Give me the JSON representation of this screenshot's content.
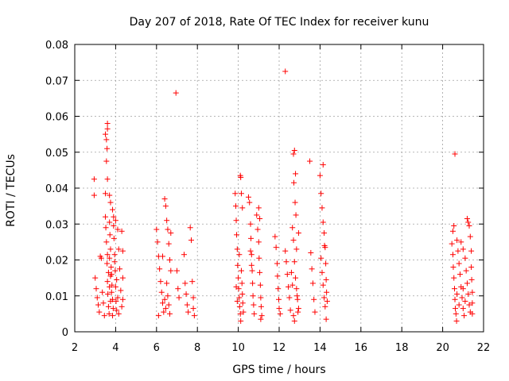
{
  "chart_data": {
    "type": "scatter",
    "title": "Day 207 of 2018, Rate Of TEC Index for receiver kunu",
    "xlabel": "GPS time / hours",
    "ylabel": "ROTI / TECUs",
    "xlim": [
      2,
      22
    ],
    "ylim": [
      0,
      0.08
    ],
    "x_ticks": [
      "2",
      "4",
      "6",
      "8",
      "10",
      "12",
      "14",
      "16",
      "18",
      "20",
      "22"
    ],
    "y_ticks": [
      "0",
      "0.01",
      "0.02",
      "0.03",
      "0.04",
      "0.05",
      "0.06",
      "0.07",
      "0.08"
    ],
    "grid": true,
    "marker": "+",
    "color": "#ff0000",
    "points": [
      [
        2.95,
        0.0425
      ],
      [
        2.95,
        0.038
      ],
      [
        3.5,
        0.055
      ],
      [
        3.55,
        0.0535
      ],
      [
        3.6,
        0.058
      ],
      [
        3.6,
        0.0565
      ],
      [
        3.58,
        0.051
      ],
      [
        3.55,
        0.0475
      ],
      [
        3.6,
        0.0425
      ],
      [
        3.5,
        0.0385
      ],
      [
        3.7,
        0.038
      ],
      [
        3.75,
        0.036
      ],
      [
        3.0,
        0.015
      ],
      [
        3.05,
        0.012
      ],
      [
        3.1,
        0.0095
      ],
      [
        3.15,
        0.0075
      ],
      [
        3.2,
        0.0055
      ],
      [
        3.25,
        0.021
      ],
      [
        3.3,
        0.0205
      ],
      [
        3.35,
        0.011
      ],
      [
        3.4,
        0.008
      ],
      [
        3.45,
        0.0045
      ],
      [
        3.5,
        0.032
      ],
      [
        3.52,
        0.029
      ],
      [
        3.55,
        0.025
      ],
      [
        3.58,
        0.019
      ],
      [
        3.6,
        0.014
      ],
      [
        3.62,
        0.0105
      ],
      [
        3.65,
        0.007
      ],
      [
        3.68,
        0.005
      ],
      [
        3.7,
        0.0305
      ],
      [
        3.72,
        0.027
      ],
      [
        3.75,
        0.023
      ],
      [
        3.78,
        0.018
      ],
      [
        3.8,
        0.016
      ],
      [
        3.82,
        0.013
      ],
      [
        3.85,
        0.009
      ],
      [
        3.88,
        0.0065
      ],
      [
        3.9,
        0.0295
      ],
      [
        3.92,
        0.026
      ],
      [
        3.95,
        0.0215
      ],
      [
        3.98,
        0.017
      ],
      [
        4.0,
        0.0125
      ],
      [
        4.02,
        0.0085
      ],
      [
        4.05,
        0.006
      ],
      [
        4.1,
        0.0285
      ],
      [
        4.15,
        0.023
      ],
      [
        4.2,
        0.0175
      ],
      [
        4.25,
        0.0115
      ],
      [
        4.3,
        0.007
      ],
      [
        4.3,
        0.028
      ],
      [
        4.35,
        0.0225
      ],
      [
        4.35,
        0.015
      ],
      [
        4.35,
        0.009
      ],
      [
        3.85,
        0.034
      ],
      [
        3.9,
        0.032
      ],
      [
        4.0,
        0.031
      ],
      [
        3.7,
        0.0205
      ],
      [
        3.75,
        0.0155
      ],
      [
        3.8,
        0.011
      ],
      [
        3.85,
        0.0045
      ],
      [
        3.95,
        0.0195
      ],
      [
        4.05,
        0.0145
      ],
      [
        4.1,
        0.0095
      ],
      [
        4.15,
        0.005
      ],
      [
        3.6,
        0.0215
      ],
      [
        3.65,
        0.0165
      ],
      [
        3.7,
        0.0125
      ],
      [
        3.75,
        0.0085
      ],
      [
        6.0,
        0.0285
      ],
      [
        6.05,
        0.025
      ],
      [
        6.1,
        0.021
      ],
      [
        6.15,
        0.0175
      ],
      [
        6.2,
        0.014
      ],
      [
        6.25,
        0.011
      ],
      [
        6.3,
        0.008
      ],
      [
        6.35,
        0.0055
      ],
      [
        6.1,
        0.0045
      ],
      [
        6.4,
        0.037
      ],
      [
        6.45,
        0.035
      ],
      [
        6.5,
        0.031
      ],
      [
        6.55,
        0.0285
      ],
      [
        6.6,
        0.0245
      ],
      [
        6.65,
        0.02
      ],
      [
        6.7,
        0.017
      ],
      [
        6.5,
        0.0135
      ],
      [
        6.55,
        0.01
      ],
      [
        6.6,
        0.0075
      ],
      [
        6.4,
        0.009
      ],
      [
        6.45,
        0.0065
      ],
      [
        6.65,
        0.005
      ],
      [
        6.7,
        0.0275
      ],
      [
        6.3,
        0.021
      ],
      [
        6.95,
        0.0665
      ],
      [
        7.0,
        0.017
      ],
      [
        7.05,
        0.012
      ],
      [
        7.1,
        0.0095
      ],
      [
        7.35,
        0.0215
      ],
      [
        7.4,
        0.0135
      ],
      [
        7.45,
        0.0105
      ],
      [
        7.5,
        0.0075
      ],
      [
        7.55,
        0.0055
      ],
      [
        7.65,
        0.029
      ],
      [
        7.7,
        0.0255
      ],
      [
        7.75,
        0.014
      ],
      [
        7.8,
        0.0095
      ],
      [
        7.8,
        0.0065
      ],
      [
        7.85,
        0.0045
      ],
      [
        9.85,
        0.0385
      ],
      [
        9.88,
        0.035
      ],
      [
        9.9,
        0.031
      ],
      [
        9.92,
        0.027
      ],
      [
        9.95,
        0.023
      ],
      [
        9.97,
        0.0185
      ],
      [
        10.0,
        0.015
      ],
      [
        10.02,
        0.012
      ],
      [
        10.05,
        0.0095
      ],
      [
        10.07,
        0.007
      ],
      [
        10.1,
        0.005
      ],
      [
        10.12,
        0.003
      ],
      [
        10.1,
        0.0435
      ],
      [
        10.12,
        0.043
      ],
      [
        10.15,
        0.0385
      ],
      [
        10.2,
        0.0345
      ],
      [
        10.05,
        0.0215
      ],
      [
        10.15,
        0.017
      ],
      [
        10.18,
        0.0135
      ],
      [
        10.2,
        0.0105
      ],
      [
        10.22,
        0.008
      ],
      [
        10.25,
        0.0055
      ],
      [
        9.9,
        0.0125
      ],
      [
        9.95,
        0.0085
      ],
      [
        10.5,
        0.0375
      ],
      [
        10.55,
        0.036
      ],
      [
        10.6,
        0.03
      ],
      [
        10.62,
        0.026
      ],
      [
        10.65,
        0.0215
      ],
      [
        10.68,
        0.017
      ],
      [
        10.7,
        0.0135
      ],
      [
        10.72,
        0.01
      ],
      [
        10.75,
        0.0075
      ],
      [
        10.78,
        0.005
      ],
      [
        10.6,
        0.0225
      ],
      [
        10.65,
        0.0185
      ],
      [
        10.9,
        0.0325
      ],
      [
        10.95,
        0.0285
      ],
      [
        11.0,
        0.025
      ],
      [
        11.02,
        0.0205
      ],
      [
        11.05,
        0.0165
      ],
      [
        11.08,
        0.013
      ],
      [
        11.1,
        0.0095
      ],
      [
        11.12,
        0.007
      ],
      [
        11.15,
        0.0045
      ],
      [
        11.0,
        0.0345
      ],
      [
        11.05,
        0.0315
      ],
      [
        11.1,
        0.0035
      ],
      [
        11.8,
        0.0265
      ],
      [
        11.85,
        0.0235
      ],
      [
        11.9,
        0.019
      ],
      [
        11.92,
        0.0155
      ],
      [
        11.95,
        0.012
      ],
      [
        11.98,
        0.009
      ],
      [
        12.0,
        0.0065
      ],
      [
        12.05,
        0.005
      ],
      [
        12.3,
        0.0725
      ],
      [
        12.3,
        0.0225
      ],
      [
        12.35,
        0.0195
      ],
      [
        12.4,
        0.016
      ],
      [
        12.45,
        0.0125
      ],
      [
        12.5,
        0.0095
      ],
      [
        12.55,
        0.006
      ],
      [
        12.7,
        0.0495
      ],
      [
        12.75,
        0.0505
      ],
      [
        12.8,
        0.044
      ],
      [
        12.72,
        0.0415
      ],
      [
        12.78,
        0.036
      ],
      [
        12.82,
        0.0325
      ],
      [
        12.65,
        0.029
      ],
      [
        12.7,
        0.0255
      ],
      [
        12.85,
        0.023
      ],
      [
        12.75,
        0.0195
      ],
      [
        12.8,
        0.015
      ],
      [
        12.85,
        0.012
      ],
      [
        12.9,
        0.009
      ],
      [
        12.95,
        0.0065
      ],
      [
        12.7,
        0.0045
      ],
      [
        12.75,
        0.003
      ],
      [
        12.95,
        0.0275
      ],
      [
        12.6,
        0.0165
      ],
      [
        12.65,
        0.013
      ],
      [
        12.88,
        0.01
      ],
      [
        12.92,
        0.0055
      ],
      [
        13.5,
        0.0475
      ],
      [
        13.55,
        0.022
      ],
      [
        13.6,
        0.0175
      ],
      [
        13.65,
        0.0135
      ],
      [
        13.7,
        0.009
      ],
      [
        13.75,
        0.0055
      ],
      [
        14.0,
        0.0435
      ],
      [
        14.05,
        0.0385
      ],
      [
        14.1,
        0.0345
      ],
      [
        14.15,
        0.0305
      ],
      [
        14.2,
        0.0275
      ],
      [
        14.22,
        0.024
      ],
      [
        14.05,
        0.0205
      ],
      [
        14.1,
        0.0165
      ],
      [
        14.15,
        0.013
      ],
      [
        14.2,
        0.0095
      ],
      [
        14.25,
        0.007
      ],
      [
        14.3,
        0.0035
      ],
      [
        14.15,
        0.0465
      ],
      [
        14.25,
        0.0235
      ],
      [
        14.28,
        0.019
      ],
      [
        14.3,
        0.0145
      ],
      [
        14.32,
        0.011
      ],
      [
        14.35,
        0.0085
      ],
      [
        20.45,
        0.0245
      ],
      [
        20.5,
        0.0215
      ],
      [
        20.52,
        0.018
      ],
      [
        20.55,
        0.015
      ],
      [
        20.58,
        0.012
      ],
      [
        20.6,
        0.009
      ],
      [
        20.62,
        0.0065
      ],
      [
        20.65,
        0.005
      ],
      [
        20.68,
        0.003
      ],
      [
        20.6,
        0.0495
      ],
      [
        20.5,
        0.028
      ],
      [
        20.55,
        0.0295
      ],
      [
        20.7,
        0.0255
      ],
      [
        20.75,
        0.0225
      ],
      [
        20.8,
        0.019
      ],
      [
        20.85,
        0.016
      ],
      [
        20.9,
        0.0125
      ],
      [
        20.95,
        0.0095
      ],
      [
        21.0,
        0.0065
      ],
      [
        21.05,
        0.0045
      ],
      [
        20.9,
        0.025
      ],
      [
        21.0,
        0.023
      ],
      [
        21.1,
        0.0205
      ],
      [
        21.15,
        0.017
      ],
      [
        21.2,
        0.0135
      ],
      [
        21.25,
        0.0105
      ],
      [
        21.3,
        0.0075
      ],
      [
        21.35,
        0.0055
      ],
      [
        21.2,
        0.0315
      ],
      [
        21.25,
        0.0305
      ],
      [
        21.3,
        0.0295
      ],
      [
        21.35,
        0.0265
      ],
      [
        21.4,
        0.0225
      ],
      [
        21.4,
        0.018
      ],
      [
        21.42,
        0.0145
      ],
      [
        21.45,
        0.011
      ],
      [
        21.45,
        0.008
      ],
      [
        21.45,
        0.005
      ],
      [
        21.0,
        0.012
      ],
      [
        21.1,
        0.0085
      ],
      [
        20.8,
        0.0075
      ],
      [
        20.7,
        0.0105
      ]
    ]
  }
}
